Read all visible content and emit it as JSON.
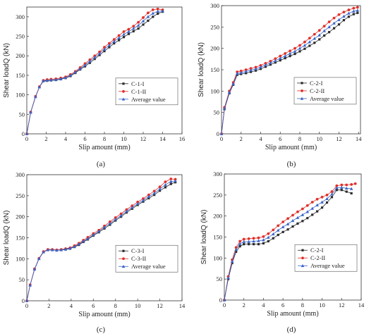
{
  "chart_data": [
    {
      "type": "line",
      "panel_label": "(a)",
      "xlabel": "Slip amount (mm)",
      "ylabel": "Shear loadQ (kN)",
      "xlim": [
        0,
        16
      ],
      "ylim": [
        0,
        325
      ],
      "xticks": [
        0,
        2,
        4,
        6,
        8,
        10,
        12,
        14,
        16
      ],
      "yticks": [
        0,
        50,
        100,
        150,
        200,
        250,
        300
      ],
      "legend_position": "right-middle",
      "series": [
        {
          "name": "C-1-I",
          "color": "#2b2b2b",
          "marker": "square",
          "x": [
            0,
            0.4,
            0.9,
            1.3,
            1.7,
            2.1,
            2.5,
            3.0,
            3.5,
            4.0,
            4.5,
            5.0,
            5.5,
            6.0,
            6.5,
            7.0,
            7.5,
            8.0,
            8.5,
            9.0,
            9.5,
            10.0,
            10.5,
            11.0,
            11.5,
            12.0,
            12.5,
            13.0,
            13.5,
            14.0
          ],
          "y": [
            0,
            55,
            95,
            120,
            135,
            136,
            137,
            138,
            140,
            143,
            148,
            156,
            165,
            173,
            182,
            192,
            202,
            212,
            222,
            232,
            240,
            248,
            256,
            263,
            270,
            280,
            290,
            300,
            308,
            313
          ]
        },
        {
          "name": "C-1-II",
          "color": "#e0302a",
          "marker": "circle",
          "x": [
            0,
            0.4,
            0.9,
            1.3,
            1.7,
            2.1,
            2.5,
            3.0,
            3.5,
            4.0,
            4.5,
            5.0,
            5.5,
            6.0,
            6.5,
            7.0,
            7.5,
            8.0,
            8.5,
            9.0,
            9.5,
            10.0,
            10.5,
            11.0,
            11.5,
            12.0,
            12.5,
            13.0,
            13.5,
            14.0
          ],
          "y": [
            0,
            56,
            96,
            121,
            137,
            139,
            140,
            141,
            143,
            146,
            152,
            160,
            170,
            180,
            190,
            200,
            210,
            222,
            232,
            242,
            252,
            262,
            268,
            276,
            286,
            298,
            310,
            318,
            320,
            318
          ]
        },
        {
          "name": "Average value",
          "color": "#3a64c8",
          "marker": "triangle",
          "x": [
            0,
            0.4,
            0.9,
            1.3,
            1.7,
            2.1,
            2.5,
            3.0,
            3.5,
            4.0,
            4.5,
            5.0,
            5.5,
            6.0,
            6.5,
            7.0,
            7.5,
            8.0,
            8.5,
            9.0,
            9.5,
            10.0,
            10.5,
            11.0,
            11.5,
            12.0,
            12.5,
            13.0,
            13.5,
            14.0
          ],
          "y": [
            0,
            55,
            95,
            120,
            136,
            137,
            138,
            139,
            141,
            144,
            150,
            158,
            167,
            176,
            186,
            196,
            206,
            217,
            227,
            237,
            246,
            255,
            262,
            270,
            278,
            289,
            300,
            309,
            314,
            315
          ]
        }
      ]
    },
    {
      "type": "line",
      "panel_label": "(b)",
      "xlabel": "Slip amount (mm)",
      "ylabel": "Shear loadQ (kN)",
      "xlim": [
        0,
        14.2
      ],
      "ylim": [
        0,
        300
      ],
      "xticks": [
        0,
        2,
        4,
        6,
        8,
        10,
        12,
        14
      ],
      "yticks": [
        0,
        50,
        100,
        150,
        200,
        250,
        300
      ],
      "legend_position": "right-middle",
      "series": [
        {
          "name": "C-2-I",
          "color": "#2b2b2b",
          "marker": "square",
          "x": [
            0,
            0.3,
            0.8,
            1.2,
            1.6,
            2.0,
            2.5,
            3.0,
            3.5,
            4.0,
            4.5,
            5.0,
            5.5,
            6.0,
            6.5,
            7.0,
            7.5,
            8.0,
            8.5,
            9.0,
            9.5,
            10.0,
            10.5,
            11.0,
            11.5,
            12.0,
            12.5,
            13.0,
            13.5,
            13.9
          ],
          "y": [
            0,
            58,
            95,
            115,
            138,
            140,
            142,
            145,
            148,
            152,
            157,
            162,
            167,
            172,
            177,
            182,
            187,
            193,
            199,
            206,
            213,
            221,
            230,
            238,
            247,
            256,
            266,
            274,
            280,
            283
          ]
        },
        {
          "name": "C-2-II",
          "color": "#e0302a",
          "marker": "circle",
          "x": [
            0,
            0.3,
            0.8,
            1.2,
            1.6,
            2.0,
            2.5,
            3.0,
            3.5,
            4.0,
            4.5,
            5.0,
            5.5,
            6.0,
            6.5,
            7.0,
            7.5,
            8.0,
            8.5,
            9.0,
            9.5,
            10.0,
            10.5,
            11.0,
            11.5,
            12.0,
            12.5,
            13.0,
            13.5,
            13.9
          ],
          "y": [
            0,
            62,
            100,
            120,
            145,
            147,
            150,
            153,
            156,
            160,
            165,
            170,
            176,
            182,
            188,
            194,
            200,
            207,
            215,
            224,
            233,
            242,
            252,
            262,
            271,
            279,
            285,
            290,
            294,
            296
          ]
        },
        {
          "name": "Average value",
          "color": "#3a64c8",
          "marker": "triangle",
          "x": [
            0,
            0.3,
            0.8,
            1.2,
            1.6,
            2.0,
            2.5,
            3.0,
            3.5,
            4.0,
            4.5,
            5.0,
            5.5,
            6.0,
            6.5,
            7.0,
            7.5,
            8.0,
            8.5,
            9.0,
            9.5,
            10.0,
            10.5,
            11.0,
            11.5,
            12.0,
            12.5,
            13.0,
            13.5,
            13.9
          ],
          "y": [
            0,
            60,
            97,
            117,
            141,
            143,
            146,
            149,
            152,
            156,
            161,
            166,
            171,
            177,
            182,
            188,
            193,
            200,
            207,
            215,
            223,
            231,
            241,
            250,
            259,
            267,
            275,
            282,
            287,
            289
          ]
        }
      ]
    },
    {
      "type": "line",
      "panel_label": "(c)",
      "xlabel": "Slip amount (mm)",
      "ylabel": "Shear loadQ (kN)",
      "xlim": [
        0,
        14
      ],
      "ylim": [
        0,
        300
      ],
      "xticks": [
        0,
        2,
        4,
        6,
        8,
        10,
        12,
        14
      ],
      "yticks": [
        0,
        50,
        100,
        150,
        200,
        250,
        300
      ],
      "legend_position": "right-middle",
      "series": [
        {
          "name": "C-3-I",
          "color": "#2b2b2b",
          "marker": "square",
          "x": [
            0,
            0.3,
            0.7,
            1.1,
            1.5,
            1.9,
            2.3,
            2.7,
            3.1,
            3.5,
            3.9,
            4.3,
            4.7,
            5.1,
            5.5,
            6.0,
            6.5,
            7.0,
            7.5,
            8.0,
            8.5,
            9.0,
            9.5,
            10.0,
            10.5,
            11.0,
            11.5,
            12.0,
            12.5,
            13.0,
            13.4
          ],
          "y": [
            0,
            37,
            75,
            100,
            116,
            121,
            121,
            120,
            121,
            122,
            124,
            128,
            133,
            140,
            146,
            155,
            163,
            172,
            181,
            191,
            200,
            210,
            219,
            228,
            236,
            244,
            252,
            262,
            270,
            278,
            282
          ]
        },
        {
          "name": "C-3-II",
          "color": "#e0302a",
          "marker": "circle",
          "x": [
            0,
            0.3,
            0.7,
            1.1,
            1.5,
            1.9,
            2.3,
            2.7,
            3.1,
            3.5,
            3.9,
            4.3,
            4.7,
            5.1,
            5.5,
            6.0,
            6.5,
            7.0,
            7.5,
            8.0,
            8.5,
            9.0,
            9.5,
            10.0,
            10.5,
            11.0,
            11.5,
            12.0,
            12.5,
            13.0,
            13.4
          ],
          "y": [
            0,
            38,
            76,
            101,
            117,
            122,
            122,
            121,
            122,
            124,
            126,
            131,
            137,
            144,
            151,
            160,
            168,
            178,
            188,
            198,
            207,
            217,
            226,
            235,
            243,
            252,
            261,
            271,
            283,
            290,
            289
          ]
        },
        {
          "name": "Average value",
          "color": "#3a64c8",
          "marker": "triangle",
          "x": [
            0,
            0.3,
            0.7,
            1.1,
            1.5,
            1.9,
            2.3,
            2.7,
            3.1,
            3.5,
            3.9,
            4.3,
            4.7,
            5.1,
            5.5,
            6.0,
            6.5,
            7.0,
            7.5,
            8.0,
            8.5,
            9.0,
            9.5,
            10.0,
            10.5,
            11.0,
            11.5,
            12.0,
            12.5,
            13.0,
            13.4
          ],
          "y": [
            0,
            37,
            75,
            100,
            116,
            121,
            121,
            120,
            121,
            123,
            125,
            129,
            135,
            142,
            148,
            157,
            165,
            175,
            184,
            194,
            203,
            213,
            222,
            231,
            239,
            248,
            256,
            266,
            276,
            284,
            285
          ]
        }
      ]
    },
    {
      "type": "line",
      "panel_label": "(d)",
      "xlabel": "Slip amount (mm)",
      "ylabel": "Shear loadQ (kN)",
      "xlim": [
        0,
        14
      ],
      "ylim": [
        0,
        300
      ],
      "xticks": [
        0,
        2,
        4,
        6,
        8,
        10,
        12,
        14
      ],
      "yticks": [
        0,
        50,
        100,
        150,
        200,
        250,
        300
      ],
      "legend_position": "right-middle",
      "series": [
        {
          "name": "C-2-I",
          "color": "#2b2b2b",
          "marker": "square",
          "x": [
            0,
            0.4,
            0.8,
            1.2,
            1.6,
            2.0,
            2.5,
            3.0,
            3.5,
            4.0,
            4.5,
            5.0,
            5.5,
            6.0,
            6.5,
            7.0,
            7.5,
            8.0,
            8.5,
            9.0,
            9.5,
            10.0,
            10.5,
            11.0,
            11.5,
            12.0,
            12.5,
            13.0
          ],
          "y": [
            0,
            50,
            88,
            115,
            128,
            133,
            133,
            133,
            133,
            135,
            140,
            147,
            155,
            162,
            168,
            175,
            182,
            188,
            195,
            203,
            211,
            220,
            232,
            245,
            262,
            262,
            258,
            254
          ]
        },
        {
          "name": "C-2-II",
          "color": "#e0302a",
          "marker": "circle",
          "x": [
            0,
            0.4,
            0.8,
            1.2,
            1.6,
            2.0,
            2.5,
            3.0,
            3.5,
            4.0,
            4.5,
            5.0,
            5.5,
            6.0,
            6.5,
            7.0,
            7.5,
            8.0,
            8.5,
            9.0,
            9.5,
            10.0,
            10.5,
            11.0,
            11.5,
            12.0,
            12.5,
            13.0,
            13.4
          ],
          "y": [
            0,
            56,
            96,
            125,
            140,
            145,
            146,
            147,
            148,
            151,
            158,
            167,
            177,
            186,
            194,
            202,
            210,
            217,
            225,
            233,
            240,
            245,
            250,
            258,
            272,
            274,
            274,
            275,
            277
          ]
        },
        {
          "name": "Average value",
          "color": "#3a64c8",
          "marker": "triangle",
          "x": [
            0,
            0.4,
            0.8,
            1.2,
            1.6,
            2.0,
            2.5,
            3.0,
            3.5,
            4.0,
            4.5,
            5.0,
            5.5,
            6.0,
            6.5,
            7.0,
            7.5,
            8.0,
            8.5,
            9.0,
            9.5,
            10.0,
            10.5,
            11.0,
            11.5,
            12.0,
            12.5,
            13.0
          ],
          "y": [
            0,
            53,
            92,
            120,
            134,
            139,
            139,
            140,
            141,
            143,
            149,
            157,
            166,
            174,
            181,
            189,
            196,
            203,
            210,
            218,
            226,
            233,
            241,
            252,
            267,
            268,
            266,
            265
          ]
        }
      ]
    }
  ]
}
